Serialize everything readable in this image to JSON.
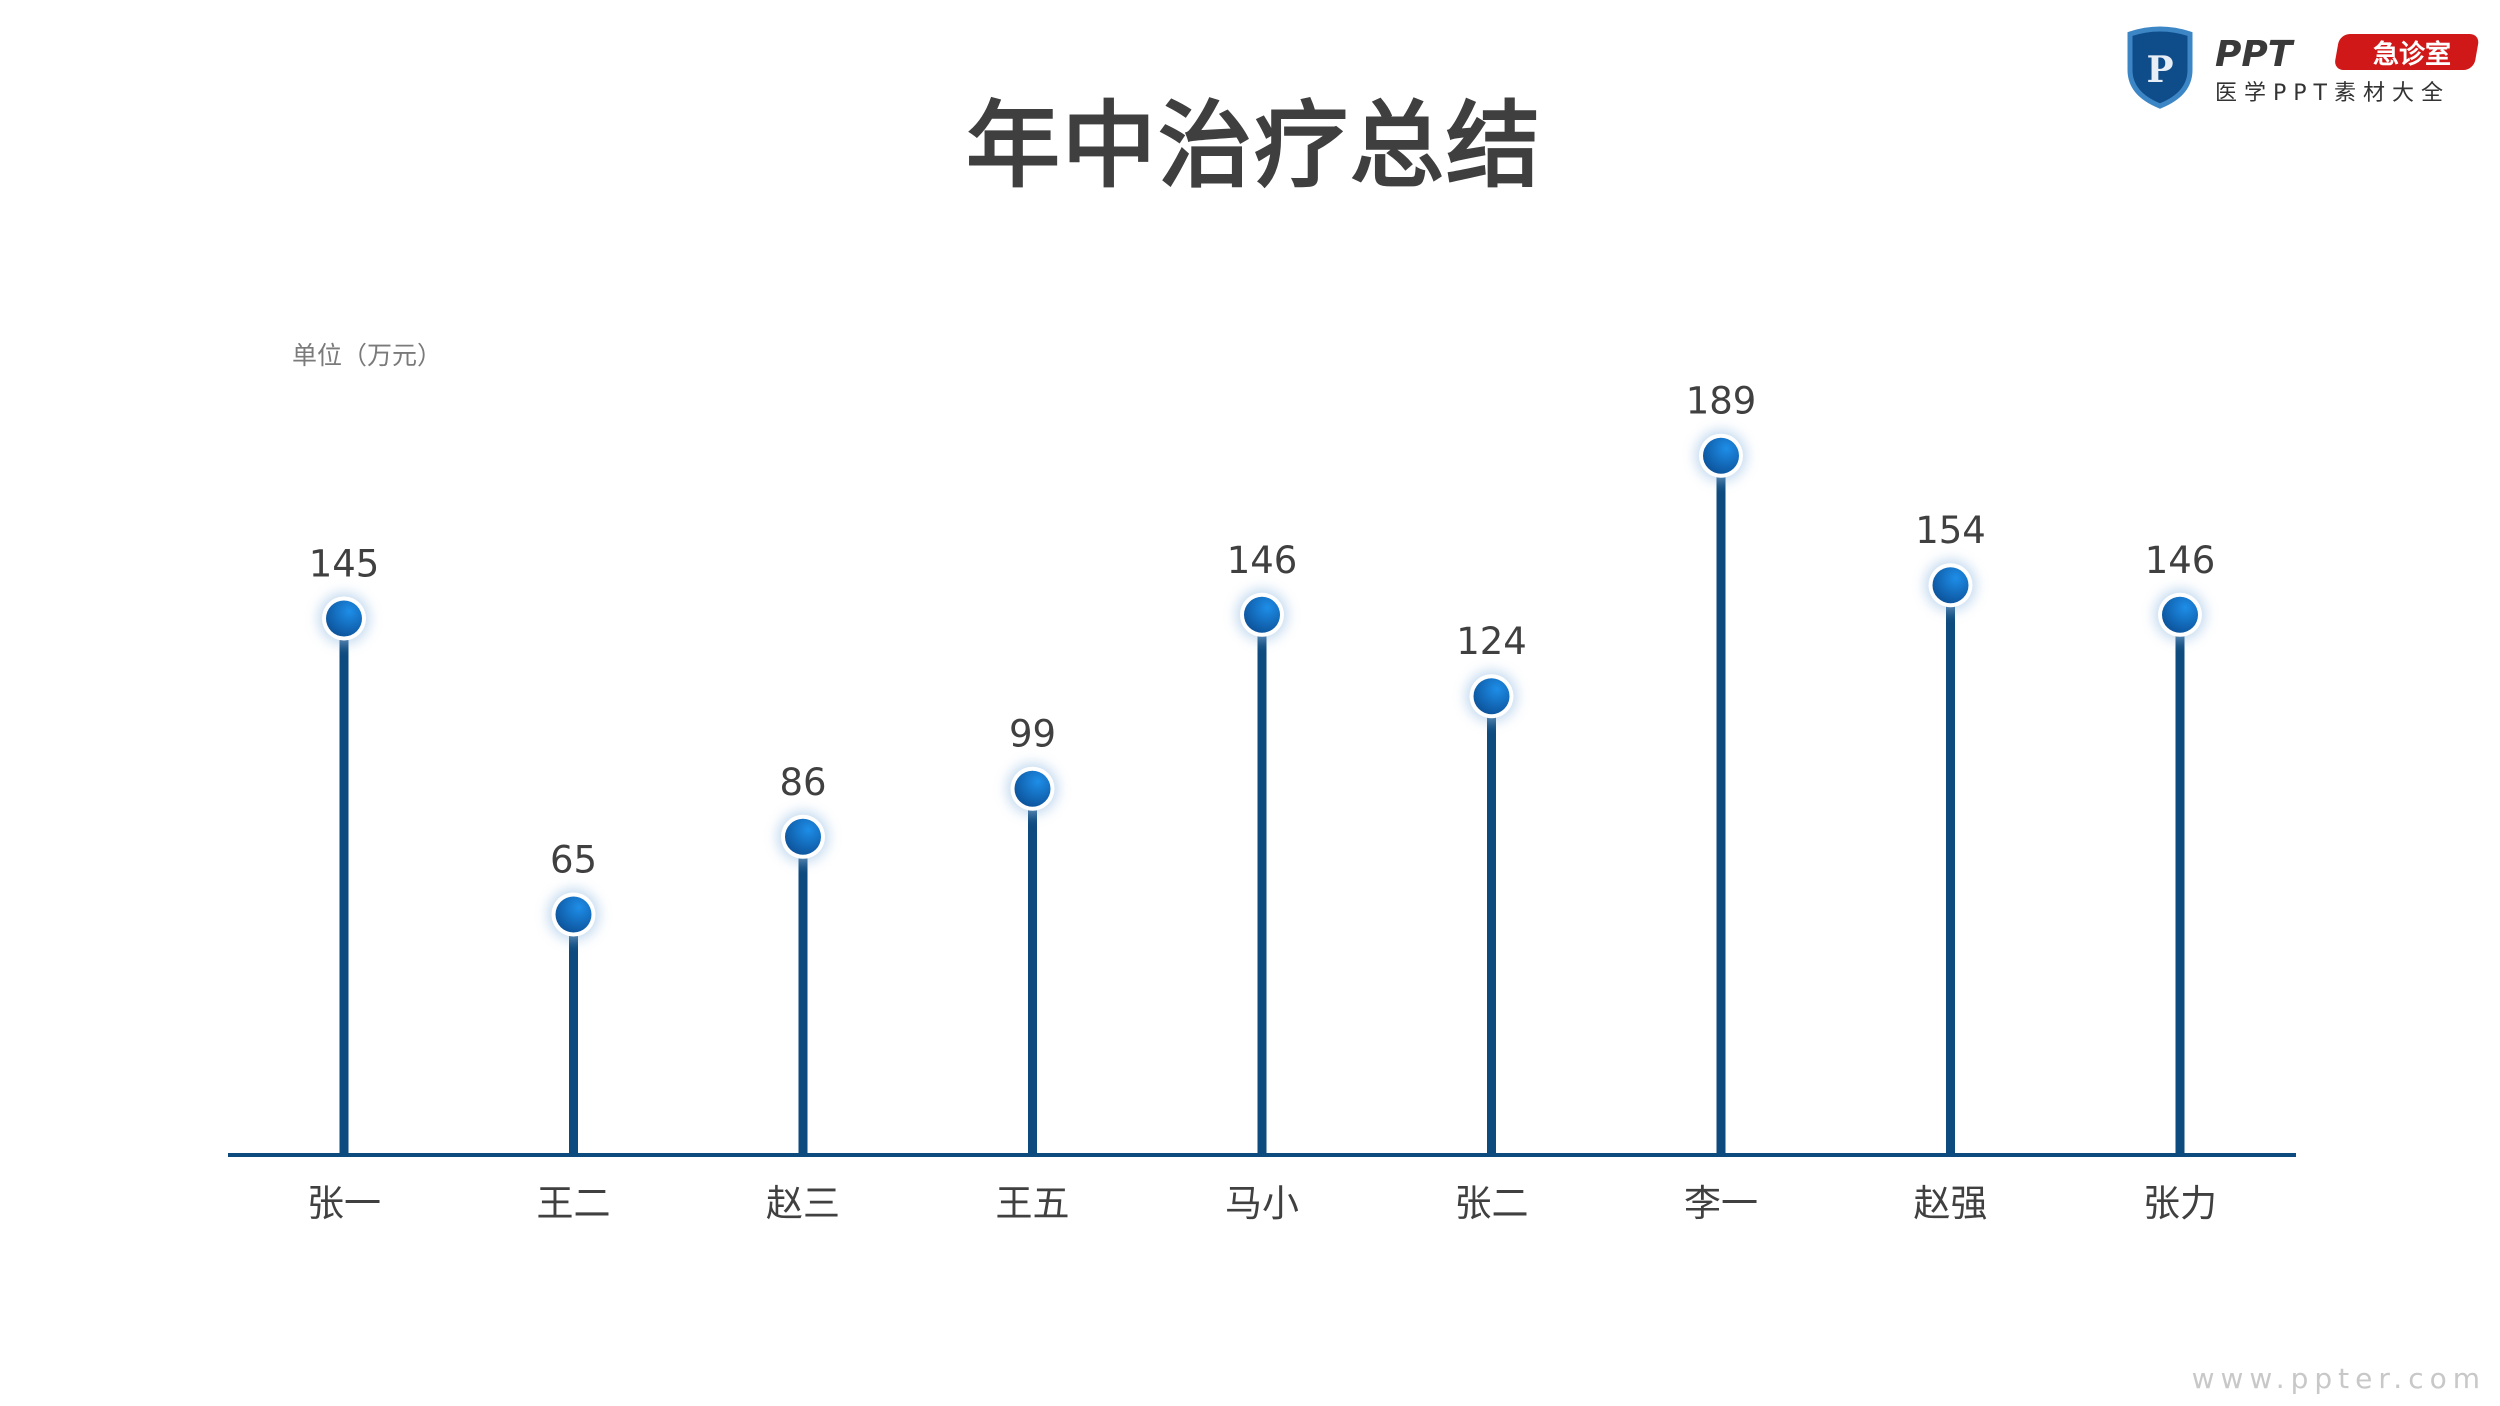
{
  "title": "年中治疗总结",
  "logo": {
    "main": "PPT",
    "badge": "急诊室",
    "subtitle": "医学PPT素材大全",
    "shield_letter": "P"
  },
  "watermark": "www.ppter.com",
  "chart_data": {
    "type": "lollipop",
    "title": "年中治疗总结",
    "unit_label": "单位（万元）",
    "categories": [
      "张一",
      "王二",
      "赵三",
      "王五",
      "马小",
      "张二",
      "李一",
      "赵强",
      "张力"
    ],
    "values": [
      145,
      65,
      86,
      99,
      146,
      124,
      189,
      154,
      146
    ],
    "ylim": [
      0,
      200
    ],
    "grid": false,
    "colors": {
      "stem": "#0d4a7e",
      "dot": "#1a78c8",
      "axis": "#0d4a7e",
      "text": "#404040"
    }
  }
}
